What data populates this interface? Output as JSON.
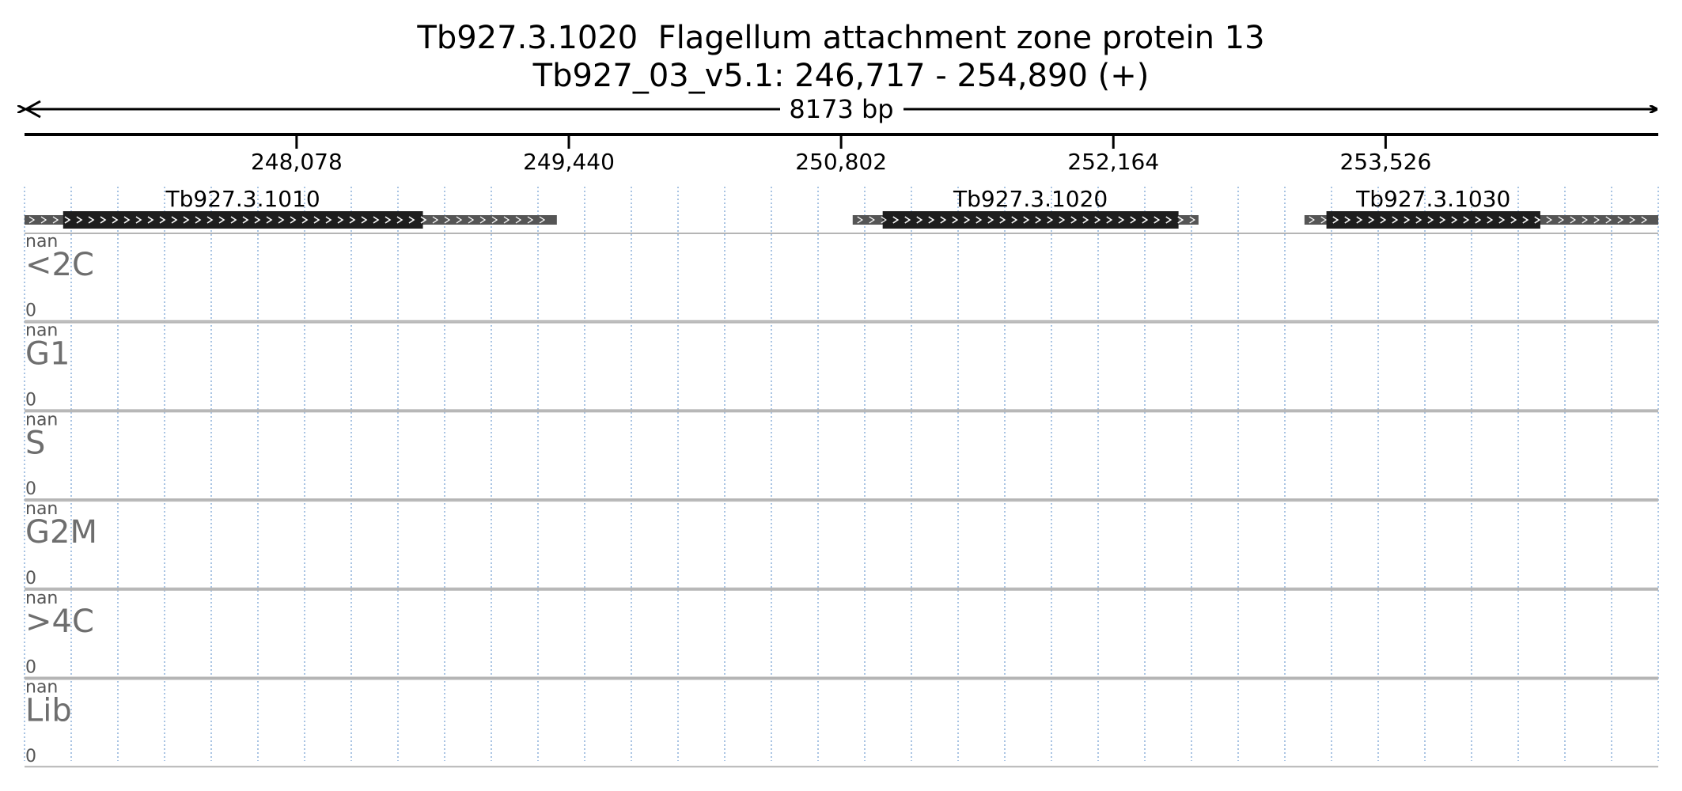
{
  "header": {
    "title_line1": "Tb927.3.1020  Flagellum attachment zone protein 13",
    "title_line2": "Tb927_03_v5.1: 246,717 - 254,890 (+)"
  },
  "chart_data": {
    "type": "genome-browser",
    "chromosome": "Tb927_03_v5.1",
    "region": {
      "start": 246717,
      "end": 254890,
      "strand": "+"
    },
    "span_label": "8173 bp",
    "ticks": [
      {
        "value": 248078,
        "label": "248,078"
      },
      {
        "value": 249440,
        "label": "249,440"
      },
      {
        "value": 250802,
        "label": "250,802"
      },
      {
        "value": 252164,
        "label": "252,164"
      },
      {
        "value": 253526,
        "label": "253,526"
      }
    ],
    "genes": [
      {
        "name": "Tb927.3.1010",
        "strand": "+",
        "start": 246717,
        "end": 249380,
        "cds_start": 246910,
        "cds_end": 248710
      },
      {
        "name": "Tb927.3.1020",
        "strand": "+",
        "start": 250860,
        "end": 252590,
        "cds_start": 251010,
        "cds_end": 252490
      },
      {
        "name": "Tb927.3.1030",
        "strand": "+",
        "start": 253120,
        "end": 254890,
        "cds_start": 253230,
        "cds_end": 254300
      }
    ],
    "tracks": [
      {
        "label": "<2C",
        "max": "nan",
        "min": "0"
      },
      {
        "label": "G1",
        "max": "nan",
        "min": "0"
      },
      {
        "label": "S",
        "max": "nan",
        "min": "0"
      },
      {
        "label": "G2M",
        "max": "nan",
        "min": "0"
      },
      {
        "label": ">4C",
        "max": "nan",
        "min": "0"
      },
      {
        "label": "Lib",
        "max": "nan",
        "min": "0"
      }
    ],
    "colors": {
      "cds": "#1e1e1e",
      "utr": "#555555",
      "grid": "#a9c4e3",
      "track_border": "#b5b5b5",
      "track_label": "#6e6e6e"
    }
  }
}
